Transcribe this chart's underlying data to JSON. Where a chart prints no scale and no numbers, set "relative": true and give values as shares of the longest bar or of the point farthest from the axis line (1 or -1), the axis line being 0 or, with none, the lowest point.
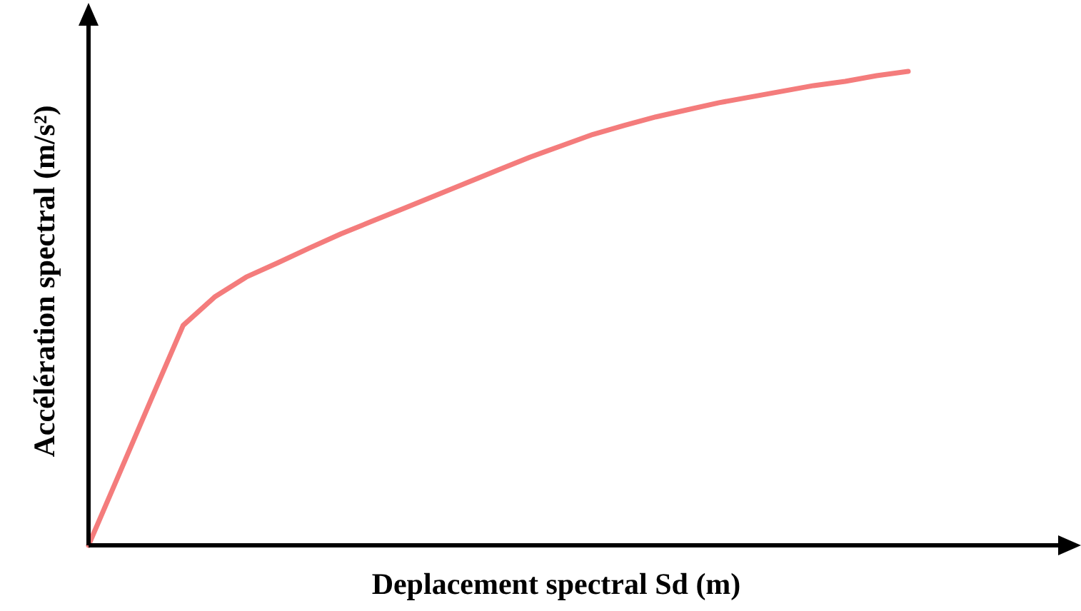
{
  "chart_data": {
    "type": "line",
    "relative": true,
    "xlabel": "Deplacement spectral Sd (m)",
    "ylabel": "Accélération spectral (m/s²)",
    "categories": [
      null,
      null,
      null,
      null,
      null,
      null,
      null,
      null,
      null,
      null,
      null,
      null,
      null,
      null,
      null,
      null,
      null,
      null,
      null,
      null,
      null,
      null,
      null,
      null,
      null,
      null,
      null
    ],
    "series": [
      {
        "color": "#f47c7c",
        "values": [
          0,
          0.155,
          0.31,
          0.464,
          0.524,
          0.566,
          0.596,
          0.627,
          0.657,
          0.684,
          0.711,
          0.738,
          0.765,
          0.792,
          0.819,
          0.843,
          0.867,
          0.886,
          0.904,
          0.919,
          0.934,
          0.946,
          0.958,
          0.97,
          0.979,
          0.991,
          1
        ]
      }
    ],
    "marker": "none",
    "line_style": "solid"
  }
}
